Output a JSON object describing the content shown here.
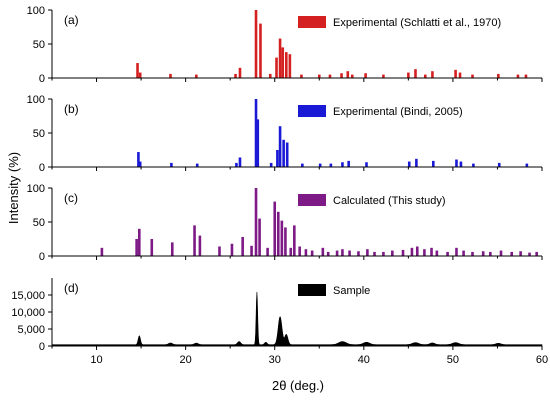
{
  "figure": {
    "y_axis_label": "Intensity (%)",
    "x_axis_label": "2θ (deg.)",
    "x_ticks": [
      10,
      20,
      30,
      40,
      50,
      60
    ]
  },
  "chart_data": [
    {
      "type": "bar",
      "panel": "(a)",
      "legend": "Experimental (Schlatti et al., 1970)",
      "color": "#d42020",
      "xlim": [
        5,
        60
      ],
      "ylim": [
        0,
        100
      ],
      "yticks": [
        0,
        50,
        100
      ],
      "peaks": [
        [
          14.6,
          22
        ],
        [
          14.9,
          8
        ],
        [
          18.3,
          6
        ],
        [
          21.2,
          5
        ],
        [
          25.6,
          6
        ],
        [
          26.1,
          15
        ],
        [
          27.9,
          100
        ],
        [
          28.4,
          80
        ],
        [
          29.5,
          6
        ],
        [
          30.2,
          30
        ],
        [
          30.6,
          58
        ],
        [
          30.9,
          45
        ],
        [
          31.3,
          38
        ],
        [
          31.7,
          35
        ],
        [
          33.0,
          5
        ],
        [
          35.0,
          5
        ],
        [
          36.2,
          5
        ],
        [
          37.5,
          7
        ],
        [
          38.2,
          10
        ],
        [
          38.7,
          5
        ],
        [
          40.2,
          7
        ],
        [
          42.2,
          5
        ],
        [
          45.0,
          8
        ],
        [
          45.8,
          13
        ],
        [
          46.9,
          5
        ],
        [
          47.7,
          10
        ],
        [
          50.3,
          12
        ],
        [
          50.8,
          8
        ],
        [
          52.2,
          5
        ],
        [
          55.1,
          6
        ],
        [
          57.3,
          5
        ],
        [
          58.2,
          5
        ]
      ]
    },
    {
      "type": "bar",
      "panel": "(b)",
      "legend": "Experimental (Bindi, 2005)",
      "color": "#1a1ad6",
      "xlim": [
        5,
        60
      ],
      "ylim": [
        0,
        100
      ],
      "yticks": [
        0,
        50,
        100
      ],
      "peaks": [
        [
          14.7,
          22
        ],
        [
          14.9,
          8
        ],
        [
          18.4,
          6
        ],
        [
          21.3,
          5
        ],
        [
          25.7,
          6
        ],
        [
          26.1,
          14
        ],
        [
          27.9,
          100
        ],
        [
          28.1,
          70
        ],
        [
          29.6,
          6
        ],
        [
          30.3,
          25
        ],
        [
          30.6,
          60
        ],
        [
          31.0,
          40
        ],
        [
          31.4,
          36
        ],
        [
          33.1,
          5
        ],
        [
          35.1,
          5
        ],
        [
          36.3,
          5
        ],
        [
          37.6,
          7
        ],
        [
          38.3,
          9
        ],
        [
          40.3,
          7
        ],
        [
          45.1,
          8
        ],
        [
          45.9,
          12
        ],
        [
          47.8,
          9
        ],
        [
          50.4,
          11
        ],
        [
          50.9,
          8
        ],
        [
          52.3,
          5
        ],
        [
          55.2,
          6
        ],
        [
          58.3,
          5
        ]
      ]
    },
    {
      "type": "bar",
      "panel": "(c)",
      "legend": "Calculated (This study)",
      "color": "#7d1a86",
      "xlim": [
        5,
        60
      ],
      "ylim": [
        0,
        100
      ],
      "yticks": [
        0,
        50,
        100
      ],
      "peaks": [
        [
          10.6,
          12
        ],
        [
          14.5,
          25
        ],
        [
          14.8,
          40
        ],
        [
          16.2,
          25
        ],
        [
          18.5,
          20
        ],
        [
          21.0,
          45
        ],
        [
          21.6,
          30
        ],
        [
          23.8,
          14
        ],
        [
          25.2,
          18
        ],
        [
          26.4,
          28
        ],
        [
          27.4,
          15
        ],
        [
          27.9,
          100
        ],
        [
          28.3,
          55
        ],
        [
          29.2,
          12
        ],
        [
          30.0,
          80
        ],
        [
          30.4,
          65
        ],
        [
          30.8,
          52
        ],
        [
          31.2,
          42
        ],
        [
          31.8,
          12
        ],
        [
          32.2,
          45
        ],
        [
          32.8,
          14
        ],
        [
          33.5,
          10
        ],
        [
          34.2,
          8
        ],
        [
          35.4,
          12
        ],
        [
          36.0,
          6
        ],
        [
          37.0,
          8
        ],
        [
          37.6,
          10
        ],
        [
          38.4,
          8
        ],
        [
          39.4,
          7
        ],
        [
          40.4,
          10
        ],
        [
          41.2,
          6
        ],
        [
          42.2,
          6
        ],
        [
          43.2,
          8
        ],
        [
          44.4,
          9
        ],
        [
          45.4,
          12
        ],
        [
          46.0,
          14
        ],
        [
          46.8,
          10
        ],
        [
          47.6,
          12
        ],
        [
          48.2,
          8
        ],
        [
          49.4,
          6
        ],
        [
          50.4,
          12
        ],
        [
          51.2,
          8
        ],
        [
          52.2,
          6
        ],
        [
          53.4,
          7
        ],
        [
          54.2,
          6
        ],
        [
          55.4,
          8
        ],
        [
          56.6,
          6
        ],
        [
          57.6,
          7
        ],
        [
          58.6,
          5
        ],
        [
          59.4,
          6
        ]
      ]
    },
    {
      "type": "line",
      "panel": "(d)",
      "legend": "Sample",
      "color": "#000000",
      "xlim": [
        5,
        60
      ],
      "ylim": [
        0,
        20000
      ],
      "yticks": [
        0,
        5000,
        10000,
        15000
      ],
      "ytick_labels": [
        "0",
        "5,000",
        "10,000",
        "15,000"
      ],
      "baseline": 400,
      "peaks": [
        [
          14.8,
          2600,
          0.18
        ],
        [
          18.3,
          500,
          0.3
        ],
        [
          21.2,
          450,
          0.3
        ],
        [
          26.0,
          900,
          0.25
        ],
        [
          28.0,
          15500,
          0.12
        ],
        [
          29.0,
          700,
          0.2
        ],
        [
          30.6,
          8200,
          0.3
        ],
        [
          31.3,
          3000,
          0.25
        ],
        [
          37.6,
          900,
          0.6
        ],
        [
          40.3,
          700,
          0.5
        ],
        [
          45.8,
          600,
          0.5
        ],
        [
          47.7,
          500,
          0.4
        ],
        [
          50.3,
          600,
          0.5
        ],
        [
          55.1,
          400,
          0.4
        ]
      ]
    }
  ]
}
